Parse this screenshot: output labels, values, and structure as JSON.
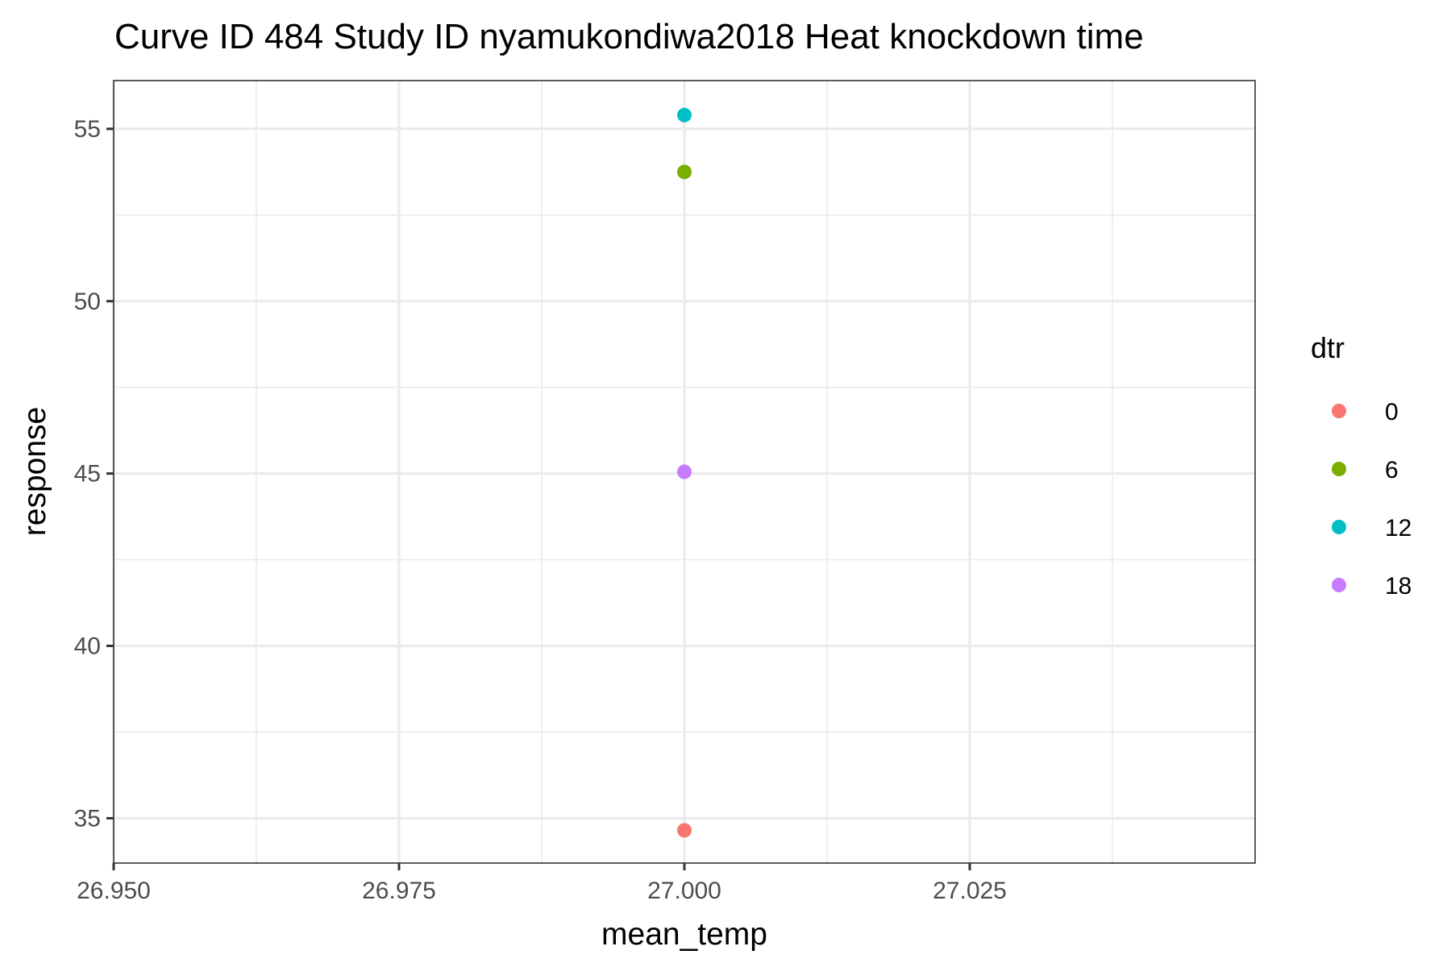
{
  "chart_data": {
    "type": "scatter",
    "title": "Curve ID 484 Study ID nyamukondiwa2018 Heat knockdown time",
    "xlabel": "mean_temp",
    "ylabel": "response",
    "xlim": [
      26.95,
      27.05
    ],
    "ylim": [
      33.7,
      56.4
    ],
    "x_ticks": [
      26.95,
      26.975,
      27.0,
      27.025
    ],
    "x_tick_labels": [
      "26.950",
      "26.975",
      "27.000",
      "27.025"
    ],
    "y_ticks": [
      35,
      40,
      45,
      50,
      55
    ],
    "y_tick_labels": [
      "35",
      "40",
      "45",
      "50",
      "55"
    ],
    "grid": true,
    "legend": {
      "title": "dtr",
      "placement": "right",
      "entries": [
        {
          "label": "0",
          "color": "#F8766D"
        },
        {
          "label": "6",
          "color": "#7CAE00"
        },
        {
          "label": "12",
          "color": "#00BFC4"
        },
        {
          "label": "18",
          "color": "#C77CFF"
        }
      ]
    },
    "series": [
      {
        "name": "0",
        "color": "#F8766D",
        "points": [
          {
            "x": 27.0,
            "y": 34.65
          }
        ]
      },
      {
        "name": "6",
        "color": "#7CAE00",
        "points": [
          {
            "x": 27.0,
            "y": 53.75
          }
        ]
      },
      {
        "name": "12",
        "color": "#00BFC4",
        "points": [
          {
            "x": 27.0,
            "y": 55.4
          }
        ]
      },
      {
        "name": "18",
        "color": "#C77CFF",
        "points": [
          {
            "x": 27.0,
            "y": 45.05
          }
        ]
      }
    ]
  }
}
